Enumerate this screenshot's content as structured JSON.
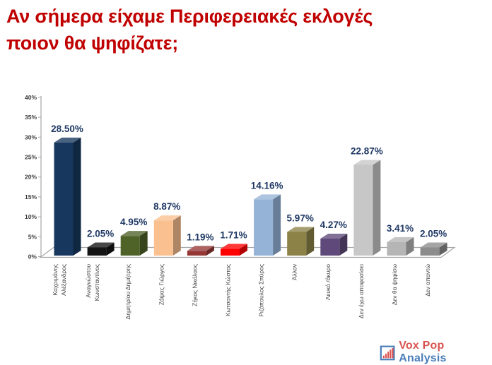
{
  "title": {
    "text": "Αν σήμερα είχαμε Περιφερειακές εκλογές\nποιον θα ψηφίζατε;",
    "color": "#C00000"
  },
  "chart_data": {
    "type": "bar",
    "style": "3d-column",
    "title": "Αν σήμερα είχαμε Περιφερειακές εκλογές ποιον θα ψηφίζατε;",
    "categories": [
      "Καχριμάνης Αλέξανδρος",
      "Αναγνώστου Κωνσταντίνος",
      "Δημητρίου Δημήτρης",
      "Ζάψας Γιώργος",
      "Ζήκος Νικόλαος",
      "Κωτσαντής Κώστας",
      "Ριζόπουλος Σπύρος",
      "Άλλον",
      "Λευκό /άκυρο",
      "Δεν έχω αποφασίσει",
      "Δεν θα ψηφίσω",
      "Δεν απαντώ"
    ],
    "values": [
      28.5,
      2.05,
      4.95,
      8.87,
      1.19,
      1.71,
      14.16,
      5.97,
      4.27,
      22.87,
      3.41,
      2.05
    ],
    "data_labels": [
      "28.50%",
      "2.05%",
      "4.95%",
      "8.87%",
      "1.19%",
      "1.71%",
      "14.16%",
      "5.97%",
      "4.27%",
      "22.87%",
      "3.41%",
      "2.05%"
    ],
    "bar_colors": [
      "#17375E",
      "#141414",
      "#4F6228",
      "#FAC090",
      "#953735",
      "#FF0000",
      "#95B3D7",
      "#8C8146",
      "#5F497A",
      "#C7C7C7",
      "#B5B5B5",
      "#8C8C8C"
    ],
    "ylim": [
      0,
      40
    ],
    "yticks": [
      "0%",
      "5%",
      "10%",
      "15%",
      "20%",
      "25%",
      "30%",
      "35%",
      "40%"
    ],
    "grid": false,
    "legend": false,
    "xlabel": "",
    "ylabel": "",
    "value_label_color": "#1F3864",
    "tick_label_color": "#3A3A3A",
    "category_label_color": "#404040",
    "axis_color": "#A6A6A6"
  },
  "footer": {
    "brand_part1": "Vox Pop",
    "brand_part2": "Analysis",
    "brand_color1": "#D9534F",
    "brand_color2": "#4A7EBB",
    "logo_icon": "bar-chart-icon"
  }
}
